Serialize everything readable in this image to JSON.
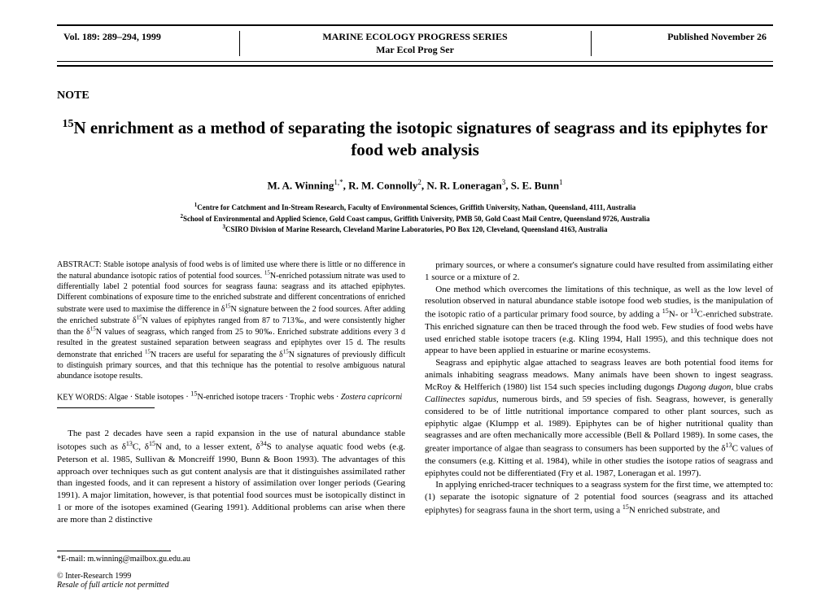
{
  "header": {
    "left": "Vol. 189: 289–294, 1999",
    "center_line1": "MARINE ECOLOGY PROGRESS SERIES",
    "center_line2": "Mar Ecol Prog Ser",
    "right": "Published November 26"
  },
  "note_label": "NOTE",
  "title_html": "<sup>15</sup>N enrichment as a method of separating the isotopic signatures of seagrass and its epiphytes for food web analysis",
  "authors_html": "M. A. Winning<sup>1,*</sup>, R. M. Connolly<sup>2</sup>, N. R. Loneragan<sup>3</sup>, S. E. Bunn<sup>1</sup>",
  "affiliations": {
    "a1_html": "<sup>1</sup>Centre for Catchment and In-Stream Research, Faculty of Environmental Sciences, Griffith University, Nathan, Queensland, 4111, Australia",
    "a2_html": "<sup>2</sup>School of Environmental and Applied Science, Gold Coast campus, Griffith University, PMB 50, Gold Coast Mail Centre, Queensland 9726, Australia",
    "a3_html": "<sup>3</sup>CSIRO Division of Marine Research, Cleveland Marine Laboratories, PO Box 120, Cleveland, Queensland 4163, Australia"
  },
  "abstract": {
    "label": "ABSTRACT: ",
    "text_html": "Stable isotope analysis of food webs is of limited use where there is little or no difference in the natural abundance isotopic ratios of potential food sources. <sup>15</sup>N-enriched potassium nitrate was used to differentially label 2 potential food sources for seagrass fauna: seagrass and its attached epiphytes. Different combinations of exposure time to the enriched substrate and different concentrations of enriched substrate were used to maximise the difference in δ<sup>15</sup>N signature between the 2 food sources. After adding the enriched substrate δ<sup>15</sup>N values of epiphytes ranged from 87 to 713‰, and were consistently higher than the δ<sup>15</sup>N values of seagrass, which ranged from 25 to 90‰. Enriched substrate additions every 3 d resulted in the greatest sustained separation between seagrass and epiphytes over 15 d. The results demonstrate that enriched <sup>15</sup>N tracers are useful for separating the δ<sup>15</sup>N signatures of previously difficult to distinguish primary sources, and that this technique has the potential to resolve ambiguous natural abundance isotope results."
  },
  "keywords": {
    "label": "KEY WORDS: ",
    "text_html": "Algae · Stable isotopes · <sup>15</sup>N-enriched isotope tracers · Trophic webs · <em>Zostera capricorni</em>"
  },
  "col1_body_html": "The past 2 decades have seen a rapid expansion in the use of natural abundance stable isotopes such as δ<sup>13</sup>C, δ<sup>15</sup>N and, to a lesser extent, δ<sup>34</sup>S to analyse aquatic food webs (e.g. Peterson et al. 1985, Sullivan & Moncreiff 1990, Bunn & Boon 1993). The advantages of this approach over techniques such as gut content analysis are that it distinguishes assimilated rather than ingested foods, and it can represent a history of assimilation over longer periods (Gearing 1991). A major limitation, however, is that potential food sources must be isotopically distinct in 1 or more of the isotopes examined (Gearing 1991). Additional problems can arise when there are more than 2 distinctive",
  "col2_body_html": "primary sources, or where a consumer's signature could have resulted from assimilating either 1 source or a mixture of 2.</p><p>One method which overcomes the limitations of this technique, as well as the low level of resolution observed in natural abundance stable isotope food web studies, is the manipulation of the isotopic ratio of a particular primary food source, by adding a <sup>15</sup>N- or <sup>13</sup>C-enriched substrate. This enriched signature can then be traced through the food web. Few studies of food webs have used enriched stable isotope tracers (e.g. Kling 1994, Hall 1995), and this technique does not appear to have been applied in estuarine or marine ecosystems.</p><p>Seagrass and epiphytic algae attached to seagrass leaves are both potential food items for animals inhabiting seagrass meadows. Many animals have been shown to ingest seagrass. McRoy & Helfferich (1980) list 154 such species including dugongs <em>Dugong dugon</em>, blue crabs <em>Callinectes sapidus</em>, numerous birds, and 59 species of fish. Seagrass, however, is generally considered to be of little nutritional importance compared to other plant sources, such as epiphytic algae (Klumpp et al. 1989). Epiphytes can be of higher nutritional quality than seagrasses and are often mechanically more accessible (Bell & Pollard 1989). In some cases, the greater importance of algae than seagrass to consumers has been supported by the δ<sup>13</sup>C values of the consumers (e.g. Kitting et al. 1984), while in other studies the isotope ratios of seagrass and epiphytes could not be differentiated (Fry et al. 1987, Loneragan et al. 1997).</p><p>In applying enriched-tracer techniques to a seagrass system for the first time, we attempted to: (1) separate the isotopic signature of 2 potential food sources (seagrass and its attached epiphytes) for seagrass fauna in the short term, using a <sup>15</sup>N enriched substrate, and",
  "footer": {
    "email": "*E-mail: m.winning@mailbox.gu.edu.au",
    "copyright": "© Inter-Research 1999",
    "resale": "Resale of full article not permitted"
  }
}
